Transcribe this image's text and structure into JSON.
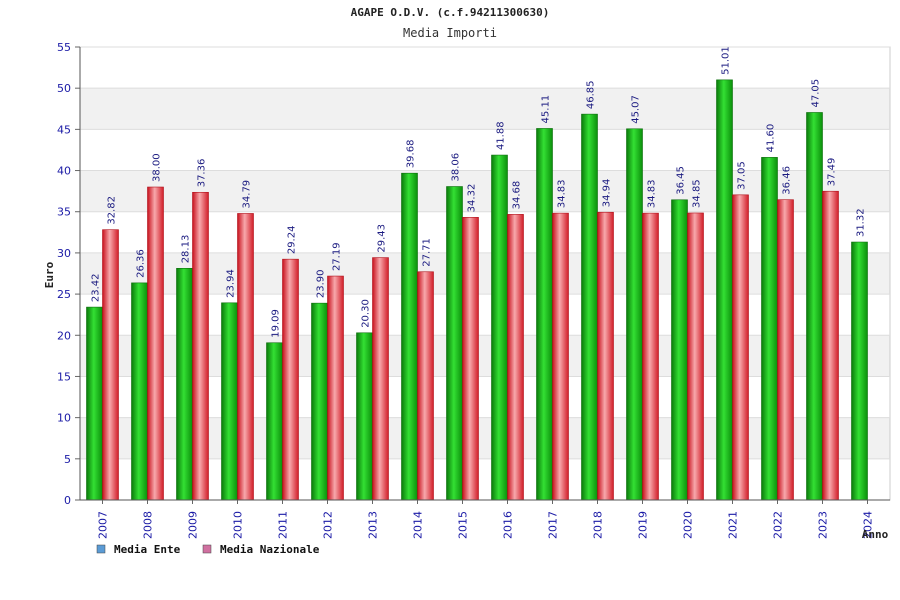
{
  "chart_data": {
    "type": "bar",
    "title": "AGAPE O.D.V. (c.f.94211300630)",
    "subtitle": "Media Importi",
    "xlabel": "Anno",
    "ylabel": "Euro",
    "ylim": [
      0,
      55
    ],
    "yticks": [
      "0",
      "5",
      "10",
      "15",
      "20",
      "25",
      "30",
      "35",
      "40",
      "45",
      "50",
      "55"
    ],
    "categories": [
      "2007",
      "2008",
      "2009",
      "2010",
      "2011",
      "2012",
      "2013",
      "2014",
      "2015",
      "2016",
      "2017",
      "2018",
      "2019",
      "2020",
      "2021",
      "2022",
      "2023",
      "2024"
    ],
    "series": [
      {
        "name": "Media Ente",
        "color": "#1fb81f",
        "legend_color": "#5b9bd5",
        "values": [
          23.42,
          26.36,
          28.13,
          23.94,
          19.09,
          23.9,
          20.3,
          39.68,
          38.06,
          41.88,
          45.11,
          46.85,
          45.07,
          36.45,
          51.01,
          41.6,
          47.05,
          31.32
        ],
        "labels": [
          "23.42",
          "26.36",
          "28.13",
          "23.94",
          "19.09",
          "23.90",
          "20.30",
          "39.68",
          "38.06",
          "41.88",
          "45.11",
          "46.85",
          "45.07",
          "36.45",
          "51.01",
          "41.60",
          "47.05",
          "31.32"
        ]
      },
      {
        "name": "Media Nazionale",
        "color": "#e0303a",
        "legend_color": "#d070a0",
        "values": [
          32.82,
          38.0,
          37.36,
          34.79,
          29.24,
          27.19,
          29.43,
          27.71,
          34.32,
          34.68,
          34.83,
          34.94,
          34.83,
          34.85,
          37.05,
          36.46,
          37.49,
          null
        ],
        "labels": [
          "32.82",
          "38.00",
          "37.36",
          "34.79",
          "29.24",
          "27.19",
          "29.43",
          "27.71",
          "34.32",
          "34.68",
          "34.83",
          "34.94",
          "34.83",
          "34.85",
          "37.05",
          "36.46",
          "37.49",
          null
        ]
      }
    ],
    "grid": true,
    "legend": "bottom-left"
  }
}
